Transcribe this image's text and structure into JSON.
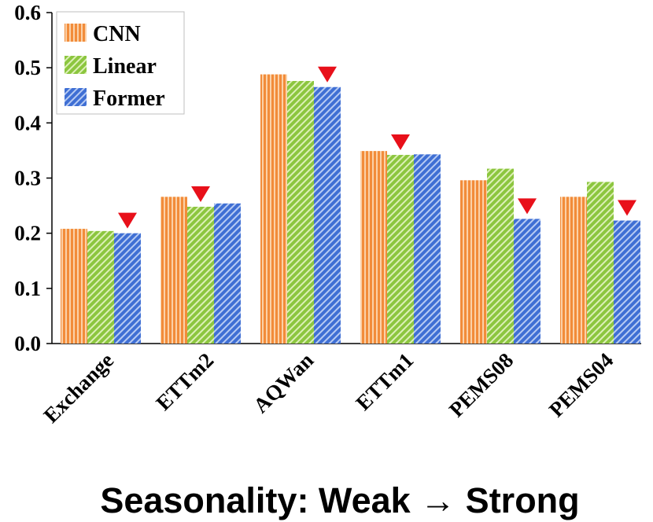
{
  "chart_data": {
    "type": "bar",
    "title": "",
    "xlabel": "Seasonality:  Weak → Strong",
    "ylabel": "",
    "ylim": [
      0.0,
      0.6
    ],
    "yticks": [
      "0.0",
      "0.1",
      "0.2",
      "0.3",
      "0.4",
      "0.5",
      "0.6"
    ],
    "categories": [
      "Exchange",
      "ETTm2",
      "AQWan",
      "ETTm1",
      "PEMS08",
      "PEMS04"
    ],
    "series": [
      {
        "name": "CNN",
        "color": "#F4A460",
        "values": [
          0.208,
          0.266,
          0.488,
          0.349,
          0.296,
          0.266
        ]
      },
      {
        "name": "Linear",
        "color": "#9ACD5A",
        "values": [
          0.204,
          0.248,
          0.476,
          0.342,
          0.317,
          0.293
        ]
      },
      {
        "name": "Former",
        "color": "#4F7FD8",
        "values": [
          0.2,
          0.254,
          0.465,
          0.343,
          0.226,
          0.223
        ]
      }
    ],
    "best_markers": [
      {
        "category": "Exchange",
        "series": "Former"
      },
      {
        "category": "ETTm2",
        "series": "Linear"
      },
      {
        "category": "AQWan",
        "series": "Former"
      },
      {
        "category": "ETTm1",
        "series": "Linear"
      },
      {
        "category": "PEMS08",
        "series": "Former"
      },
      {
        "category": "PEMS04",
        "series": "Former"
      }
    ],
    "marker_color": "#E8101A",
    "legend_position": "top-left",
    "grid": false
  }
}
